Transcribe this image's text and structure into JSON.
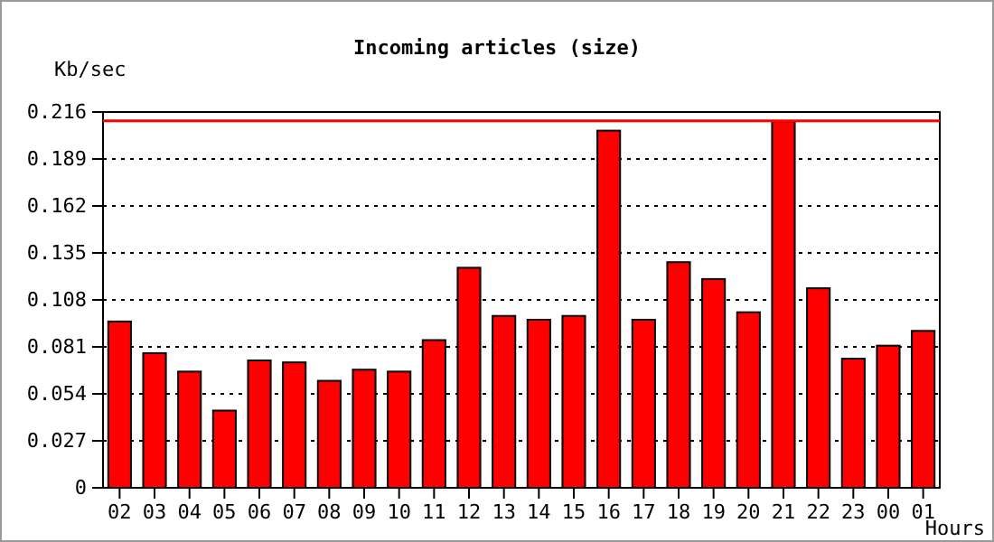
{
  "chart_data": {
    "type": "bar",
    "title": "Incoming articles (size)",
    "ylabel": "Kb/sec",
    "xlabel": "Hours",
    "categories": [
      "02",
      "03",
      "04",
      "05",
      "06",
      "07",
      "08",
      "09",
      "10",
      "11",
      "12",
      "13",
      "14",
      "15",
      "16",
      "17",
      "18",
      "19",
      "20",
      "21",
      "22",
      "23",
      "00",
      "01"
    ],
    "series": [
      {
        "color": "#ff0000",
        "values": [
          0.0956,
          0.0774,
          0.0668,
          0.0444,
          0.0732,
          0.0721,
          0.0615,
          0.0679,
          0.0668,
          0.0849,
          0.1265,
          0.0988,
          0.0966,
          0.0988,
          0.2053,
          0.0966,
          0.1297,
          0.12,
          0.1009,
          0.2107,
          0.1147,
          0.0742,
          0.0817,
          0.0902
        ]
      }
    ],
    "ylim": [
      0,
      0.216
    ],
    "yticks": [
      0,
      0.027,
      0.054,
      0.081,
      0.108,
      0.135,
      0.162,
      0.189,
      0.216
    ],
    "grid": "y",
    "ref_lines": [
      {
        "axis": "y",
        "value": 0.211,
        "color": "#ff0000"
      }
    ]
  }
}
